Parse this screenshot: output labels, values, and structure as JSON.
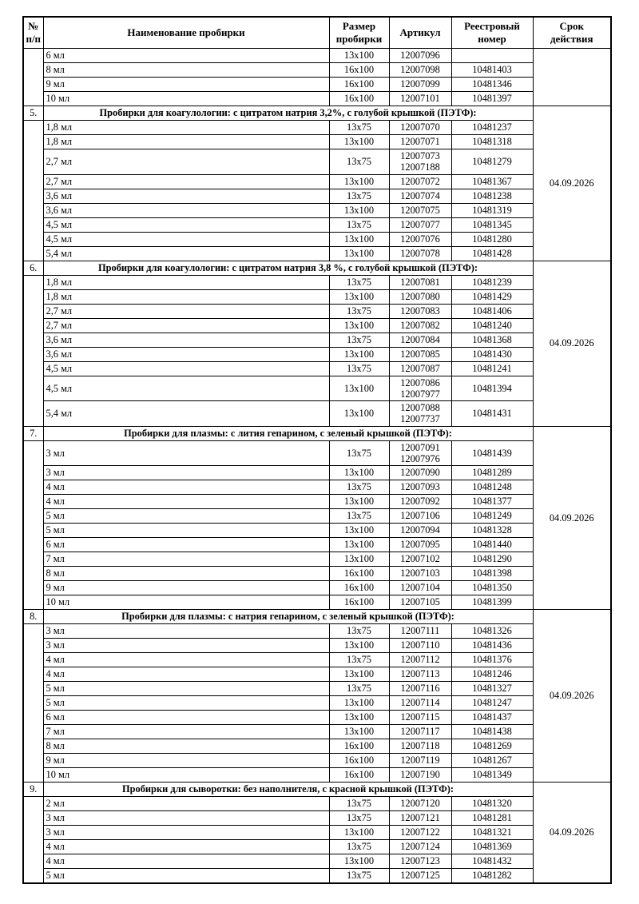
{
  "table": {
    "headers": {
      "num": "№\nп/п",
      "name": "Наименование пробирки",
      "size": "Размер\nпробирки",
      "article": "Артикул",
      "registry": "Реестровый\nномер",
      "validity": "Срок\nдействия"
    },
    "sections": [
      {
        "number": "",
        "title": "",
        "validity": "",
        "rows": [
          [
            "6 мл",
            "13x100",
            "12007096",
            ""
          ],
          [
            "8 мл",
            "16x100",
            "12007098",
            "10481403"
          ],
          [
            "9 мл",
            "16x100",
            "12007099",
            "10481346"
          ],
          [
            "10 мл",
            "16x100",
            "12007101",
            "10481397"
          ]
        ]
      },
      {
        "number": "5.",
        "title": "Пробирки для коагулологии: с цитратом натрия 3,2%, с голубой крышкой (ПЭТФ):",
        "validity": "04.09.2026",
        "rows": [
          [
            "1,8 мл",
            "13x75",
            "12007070",
            "10481237"
          ],
          [
            "1,8 мл",
            "13x100",
            "12007071",
            "10481318"
          ],
          [
            "2,7 мл",
            "13x75",
            "12007073\n12007188",
            "10481279"
          ],
          [
            "2,7 мл",
            "13x100",
            "12007072",
            "10481367"
          ],
          [
            "3,6 мл",
            "13x75",
            "12007074",
            "10481238"
          ],
          [
            "3,6 мл",
            "13x100",
            "12007075",
            "10481319"
          ],
          [
            "4,5 мл",
            "13x75",
            "12007077",
            "10481345"
          ],
          [
            "4,5 мл",
            "13x100",
            "12007076",
            "10481280"
          ],
          [
            "5,4 мл",
            "13x100",
            "12007078",
            "10481428"
          ]
        ]
      },
      {
        "number": "6.",
        "title": "Пробирки для коагулологии: с цитратом натрия 3,8 %, с голубой крышкой (ПЭТФ):",
        "validity": "04.09.2026",
        "rows": [
          [
            "1,8 мл",
            "13x75",
            "12007081",
            "10481239"
          ],
          [
            "1,8 мл",
            "13x100",
            "12007080",
            "10481429"
          ],
          [
            "2,7 мл",
            "13x75",
            "12007083",
            "10481406"
          ],
          [
            "2,7 мл",
            "13x100",
            "12007082",
            "10481240"
          ],
          [
            "3,6 мл",
            "13x75",
            "12007084",
            "10481368"
          ],
          [
            "3,6 мл",
            "13x100",
            "12007085",
            "10481430"
          ],
          [
            "4,5 мл",
            "13x75",
            "12007087",
            "10481241"
          ],
          [
            "4,5 мл",
            "13x100",
            "12007086\n12007977",
            "10481394"
          ],
          [
            "5,4 мл",
            "13x100",
            "12007088\n12007737",
            "10481431"
          ]
        ]
      },
      {
        "number": "7.",
        "title": "Пробирки для плазмы: с лития гепарином, с зеленый крышкой (ПЭТФ):",
        "validity": "04.09.2026",
        "rows": [
          [
            "3 мл",
            "13x75",
            "12007091\n12007976",
            "10481439"
          ],
          [
            "3 мл",
            "13x100",
            "12007090",
            "10481289"
          ],
          [
            "4 мл",
            "13x75",
            "12007093",
            "10481248"
          ],
          [
            "4 мл",
            "13x100",
            "12007092",
            "10481377"
          ],
          [
            "5 мл",
            "13x75",
            "12007106",
            "10481249"
          ],
          [
            "5 мл",
            "13x100",
            "12007094",
            "10481328"
          ],
          [
            "6 мл",
            "13x100",
            "12007095",
            "10481440"
          ],
          [
            "7 мл",
            "13x100",
            "12007102",
            "10481290"
          ],
          [
            "8 мл",
            "16x100",
            "12007103",
            "10481398"
          ],
          [
            "9 мл",
            "16x100",
            "12007104",
            "10481350"
          ],
          [
            "10 мл",
            "16x100",
            "12007105",
            "10481399"
          ]
        ]
      },
      {
        "number": "8.",
        "title": "Пробирки для плазмы: с натрия гепарином, с зеленый крышкой (ПЭТФ):",
        "validity": "04.09.2026",
        "rows": [
          [
            "3 мл",
            "13x75",
            "12007111",
            "10481326"
          ],
          [
            "3 мл",
            "13x100",
            "12007110",
            "10481436"
          ],
          [
            "4 мл",
            "13x75",
            "12007112",
            "10481376"
          ],
          [
            "4 мл",
            "13x100",
            "12007113",
            "10481246"
          ],
          [
            "5 мл",
            "13x75",
            "12007116",
            "10481327"
          ],
          [
            "5 мл",
            "13x100",
            "12007114",
            "10481247"
          ],
          [
            "6 мл",
            "13x100",
            "12007115",
            "10481437"
          ],
          [
            "7 мл",
            "13x100",
            "12007117",
            "10481438"
          ],
          [
            "8 мл",
            "16x100",
            "12007118",
            "10481269"
          ],
          [
            "9 мл",
            "16x100",
            "12007119",
            "10481267"
          ],
          [
            "10 мл",
            "16x100",
            "12007190",
            "10481349"
          ]
        ]
      },
      {
        "number": "9.",
        "title": "Пробирки для сыворотки: без наполнителя, с красной крышкой (ПЭТФ):",
        "validity": "04.09.2026",
        "rows": [
          [
            "2 мл",
            "13x75",
            "12007120",
            "10481320"
          ],
          [
            "3 мл",
            "13x75",
            "12007121",
            "10481281"
          ],
          [
            "3 мл",
            "13x100",
            "12007122",
            "10481321"
          ],
          [
            "4 мл",
            "13x75",
            "12007124",
            "10481369"
          ],
          [
            "4 мл",
            "13x100",
            "12007123",
            "10481432"
          ],
          [
            "5 мл",
            "13x75",
            "12007125",
            "10481282"
          ]
        ]
      }
    ]
  }
}
